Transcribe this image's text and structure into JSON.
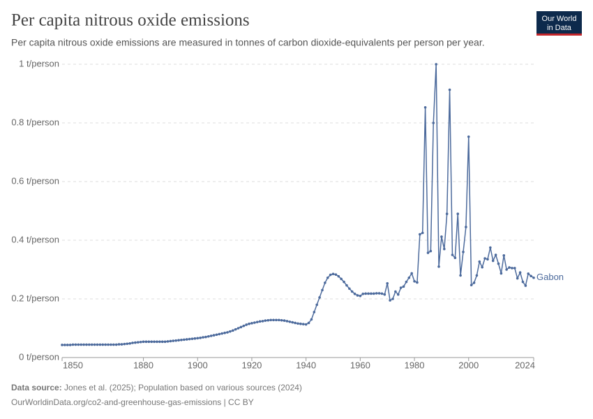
{
  "chart_data": {
    "type": "line",
    "title": "Per capita nitrous oxide emissions",
    "subtitle": "Per capita nitrous oxide emissions are measured in tonnes of carbon dioxide-equivalents per person per year.",
    "logo": [
      "Our World",
      "in Data"
    ],
    "source_label": "Data source:",
    "source": "Jones et al. (2025); Population based on various sources (2024)",
    "url": "OurWorldinData.org/co2-and-greenhouse-gas-emissions | CC BY",
    "x": [
      1850,
      1851,
      1852,
      1853,
      1854,
      1855,
      1856,
      1857,
      1858,
      1859,
      1860,
      1861,
      1862,
      1863,
      1864,
      1865,
      1866,
      1867,
      1868,
      1869,
      1870,
      1871,
      1872,
      1873,
      1874,
      1875,
      1876,
      1877,
      1878,
      1879,
      1880,
      1881,
      1882,
      1883,
      1884,
      1885,
      1886,
      1887,
      1888,
      1889,
      1890,
      1891,
      1892,
      1893,
      1894,
      1895,
      1896,
      1897,
      1898,
      1899,
      1900,
      1901,
      1902,
      1903,
      1904,
      1905,
      1906,
      1907,
      1908,
      1909,
      1910,
      1911,
      1912,
      1913,
      1914,
      1915,
      1916,
      1917,
      1918,
      1919,
      1920,
      1921,
      1922,
      1923,
      1924,
      1925,
      1926,
      1927,
      1928,
      1929,
      1930,
      1931,
      1932,
      1933,
      1934,
      1935,
      1936,
      1937,
      1938,
      1939,
      1940,
      1941,
      1942,
      1943,
      1944,
      1945,
      1946,
      1947,
      1948,
      1949,
      1950,
      1951,
      1952,
      1953,
      1954,
      1955,
      1956,
      1957,
      1958,
      1959,
      1960,
      1961,
      1962,
      1963,
      1964,
      1965,
      1966,
      1967,
      1968,
      1969,
      1970,
      1971,
      1972,
      1973,
      1974,
      1975,
      1976,
      1977,
      1978,
      1979,
      1980,
      1981,
      1982,
      1983,
      1984,
      1985,
      1986,
      1987,
      1988,
      1989,
      1990,
      1991,
      1992,
      1993,
      1994,
      1995,
      1996,
      1997,
      1998,
      1999,
      2000,
      2001,
      2002,
      2003,
      2004,
      2005,
      2006,
      2007,
      2008,
      2009,
      2010,
      2011,
      2012,
      2013,
      2014,
      2015,
      2016,
      2017,
      2018,
      2019,
      2020,
      2021,
      2022,
      2023,
      2024
    ],
    "series": [
      {
        "name": "Gabon",
        "color": "#4c6a9c",
        "values": [
          0.043,
          0.043,
          0.043,
          0.043,
          0.044,
          0.044,
          0.044,
          0.044,
          0.044,
          0.044,
          0.044,
          0.044,
          0.044,
          0.044,
          0.044,
          0.044,
          0.044,
          0.044,
          0.044,
          0.044,
          0.044,
          0.045,
          0.045,
          0.046,
          0.047,
          0.048,
          0.05,
          0.051,
          0.052,
          0.053,
          0.054,
          0.054,
          0.054,
          0.054,
          0.054,
          0.054,
          0.054,
          0.054,
          0.054,
          0.055,
          0.056,
          0.057,
          0.058,
          0.059,
          0.06,
          0.061,
          0.062,
          0.063,
          0.064,
          0.065,
          0.066,
          0.067,
          0.069,
          0.07,
          0.072,
          0.074,
          0.076,
          0.078,
          0.08,
          0.082,
          0.084,
          0.086,
          0.089,
          0.092,
          0.096,
          0.1,
          0.104,
          0.108,
          0.112,
          0.115,
          0.117,
          0.119,
          0.121,
          0.123,
          0.124,
          0.126,
          0.127,
          0.128,
          0.128,
          0.128,
          0.128,
          0.127,
          0.126,
          0.124,
          0.122,
          0.12,
          0.118,
          0.116,
          0.115,
          0.114,
          0.113,
          0.118,
          0.13,
          0.155,
          0.18,
          0.205,
          0.23,
          0.255,
          0.272,
          0.282,
          0.285,
          0.283,
          0.277,
          0.268,
          0.258,
          0.246,
          0.235,
          0.225,
          0.217,
          0.212,
          0.21,
          0.217,
          0.218,
          0.218,
          0.218,
          0.218,
          0.219,
          0.219,
          0.218,
          0.215,
          0.253,
          0.195,
          0.2,
          0.225,
          0.215,
          0.238,
          0.242,
          0.258,
          0.272,
          0.287,
          0.26,
          0.256,
          0.42,
          0.425,
          0.853,
          0.357,
          0.363,
          0.8,
          1.0,
          0.31,
          0.412,
          0.37,
          0.49,
          0.913,
          0.35,
          0.34,
          0.49,
          0.28,
          0.36,
          0.445,
          0.753,
          0.247,
          0.255,
          0.28,
          0.327,
          0.308,
          0.338,
          0.335,
          0.375,
          0.33,
          0.35,
          0.32,
          0.287,
          0.348,
          0.3,
          0.307,
          0.305,
          0.305,
          0.27,
          0.29,
          0.258,
          0.245,
          0.286,
          0.278,
          0.272
        ]
      }
    ],
    "xlim": [
      1850,
      2024
    ],
    "xticks": [
      1850,
      1880,
      1900,
      1920,
      1940,
      1960,
      1980,
      2000,
      2024
    ],
    "ylim": [
      0,
      1
    ],
    "yticks": [
      {
        "value": 0,
        "label": "0 t/person"
      },
      {
        "value": 0.2,
        "label": "0.2 t/person"
      },
      {
        "value": 0.4,
        "label": "0.4 t/person"
      },
      {
        "value": 0.6,
        "label": "0.6 t/person"
      },
      {
        "value": 0.8,
        "label": "0.8 t/person"
      },
      {
        "value": 1,
        "label": "1 t/person"
      }
    ],
    "grid": true
  }
}
